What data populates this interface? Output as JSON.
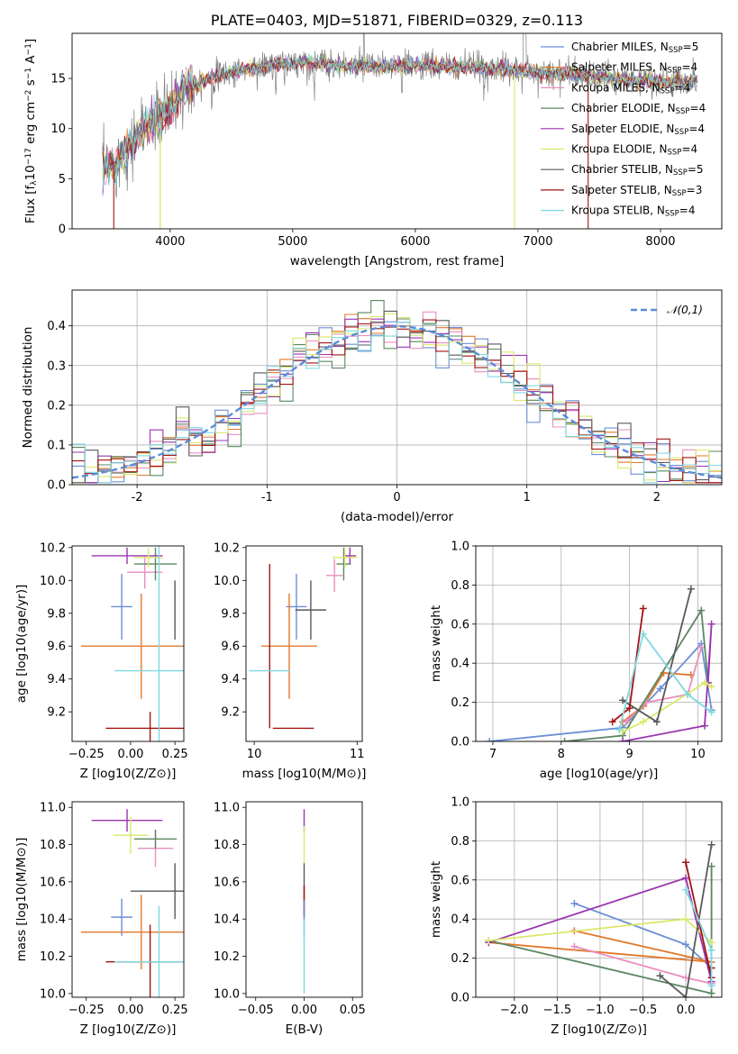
{
  "colors": {
    "Chabrier MILES": "#6a8fd6",
    "Salpeter MILES": "#e3792b",
    "Kroupa MILES": "#e98fbf",
    "Chabrier ELODIE": "#5b8761",
    "Salpeter ELODIE": "#9a35b0",
    "Kroupa ELODIE": "#dbe86a",
    "Chabrier STELIB": "#5a5a5a",
    "Salpeter STELIB": "#a31313",
    "Kroupa STELIB": "#7fd8e0"
  },
  "chart_data": [
    {
      "id": "spectrum",
      "type": "line",
      "title": "PLATE=0403, MJD=51871, FIBERID=0329, z=0.113",
      "xlabel": "wavelength [Angstrom, rest frame]",
      "ylabel": "Flux [f$_\\lambda$10$^{-17}$ erg cm$^{-2}$ s$^{-1}$ A$^{-1}$]",
      "ylabel_parts": [
        "Flux [f",
        "λ",
        "10",
        "−17",
        " erg cm",
        "−2",
        " s",
        "−1",
        " A",
        "−1",
        "]"
      ],
      "xlim": [
        3200,
        8500
      ],
      "ylim": [
        0,
        19.5
      ],
      "xticks": [
        4000,
        5000,
        6000,
        7000,
        8000
      ],
      "yticks": [
        0,
        5,
        10,
        15
      ],
      "legend_position": "upper right",
      "legend": [
        "Chabrier MILES, N$_{SSP}$=5",
        "Salpeter MILES, N$_{SSP}$=4",
        "Kroupa MILES, N$_{SSP}$=4",
        "Chabrier ELODIE, N$_{SSP}$=4",
        "Salpeter ELODIE, N$_{SSP}$=4",
        "Kroupa ELODIE, N$_{SSP}$=4",
        "Chabrier STELIB, N$_{SSP}$=5",
        "Salpeter STELIB, N$_{SSP}$=3",
        "Kroupa STELIB, N$_{SSP}$=4"
      ],
      "legend_parts": [
        [
          "Chabrier MILES, N",
          "SSP",
          "=5"
        ],
        [
          "Salpeter MILES, N",
          "SSP",
          "=4"
        ],
        [
          "Kroupa MILES, N",
          "SSP",
          "=4"
        ],
        [
          "Chabrier ELODIE, N",
          "SSP",
          "=4"
        ],
        [
          "Salpeter ELODIE, N",
          "SSP",
          "=4"
        ],
        [
          "Kroupa ELODIE, N",
          "SSP",
          "=4"
        ],
        [
          "Chabrier STELIB, N",
          "SSP",
          "=5"
        ],
        [
          "Salpeter STELIB, N",
          "SSP",
          "=3"
        ],
        [
          "Kroupa STELIB, N",
          "SSP",
          "=4"
        ]
      ],
      "data_color": "#808080",
      "continuum": [
        [
          3450,
          6.0
        ],
        [
          3550,
          6.4
        ],
        [
          3700,
          8.8
        ],
        [
          3800,
          10.3
        ],
        [
          3900,
          11.0
        ],
        [
          3960,
          11.6
        ],
        [
          4050,
          12.6
        ],
        [
          4100,
          14.2
        ],
        [
          4300,
          14.9
        ],
        [
          4500,
          15.6
        ],
        [
          4700,
          16.1
        ],
        [
          4900,
          16.4
        ],
        [
          5100,
          16.6
        ],
        [
          5300,
          16.4
        ],
        [
          5500,
          16.2
        ],
        [
          5800,
          16.2
        ],
        [
          6000,
          16.3
        ],
        [
          6300,
          16.2
        ],
        [
          6600,
          16.1
        ],
        [
          7000,
          15.6
        ],
        [
          7300,
          15.4
        ],
        [
          7600,
          15.0
        ],
        [
          8000,
          14.7
        ],
        [
          8300,
          14.7
        ]
      ],
      "dropouts": [
        [
          3540,
          "Salpeter STELIB"
        ],
        [
          3920,
          "Salpeter MILES"
        ],
        [
          3920,
          "Kroupa ELODIE"
        ],
        [
          6810,
          "Kroupa ELODIE"
        ],
        [
          7410,
          "Salpeter STELIB"
        ]
      ]
    },
    {
      "id": "residuals",
      "type": "histogram",
      "xlabel": "(data-model)/error",
      "ylabel": "Normed distribution",
      "xlim": [
        -2.5,
        2.5
      ],
      "ylim": [
        0,
        0.49
      ],
      "xticks": [
        -2,
        -1,
        0,
        1,
        2
      ],
      "yticks": [
        0.0,
        0.1,
        0.2,
        0.3,
        0.4
      ],
      "grid": true,
      "legend_position": "upper right",
      "legend": [
        "$\\mathcal{N}(0,1)$"
      ],
      "legend_text": "𝒩(0,1)",
      "reference_curve": "normal density, mean 0, sigma 1",
      "bin_width": 0.1
    },
    {
      "id": "z-age",
      "type": "errorbar",
      "xlabel": "Z [log$_{10}$($Z/Z_\\odot$)]",
      "xlabel_text": "Z [log10(Z/Z⊙)]",
      "ylabel": "age  [log$_{10}$($age/yr$)]",
      "ylabel_text": "age  [log10(age/yr)]",
      "xlim": [
        -0.33,
        0.3
      ],
      "ylim": [
        9.02,
        10.21
      ],
      "xticks": [
        -0.25,
        0.0,
        0.25
      ],
      "xticklabels": [
        "−0.25",
        "0.00",
        "0.25"
      ],
      "yticks": [
        9.2,
        9.4,
        9.6,
        9.8,
        10.0,
        10.2
      ],
      "yticklabels": [
        "9.2",
        "9.4",
        "9.6",
        "9.8",
        "10.0",
        "10.2"
      ],
      "points": [
        {
          "model": "Chabrier MILES",
          "x": -0.05,
          "xerr": 0.06,
          "y": 9.84,
          "yerr": 0.2
        },
        {
          "model": "Salpeter MILES",
          "x": 0.06,
          "xerr": 0.34,
          "y": 9.6,
          "yerr": 0.32
        },
        {
          "model": "Kroupa MILES",
          "x": 0.08,
          "xerr": 0.1,
          "y": 10.05,
          "yerr": 0.1
        },
        {
          "model": "Chabrier ELODIE",
          "x": 0.14,
          "xerr": 0.12,
          "y": 10.1,
          "yerr": 0.1
        },
        {
          "model": "Salpeter ELODIE",
          "x": -0.02,
          "xerr": 0.2,
          "y": 10.15,
          "yerr": 0.05
        },
        {
          "model": "Kroupa ELODIE",
          "x": 0.1,
          "xerr": 0.08,
          "y": 10.14,
          "yerr": 0.06
        },
        {
          "model": "Chabrier STELIB",
          "x": 0.25,
          "xerr": 0.0,
          "y": 9.82,
          "yerr": 0.18
        },
        {
          "model": "Salpeter STELIB",
          "x": 0.11,
          "xerr": 0.25,
          "y": 9.1,
          "yerr": 0.1
        },
        {
          "model": "Kroupa STELIB",
          "x": 0.16,
          "xerr": 0.25,
          "y": 9.45,
          "yerr": 0.8
        }
      ]
    },
    {
      "id": "mass-age",
      "type": "errorbar",
      "xlabel": "mass [log$_{10}$($M/M_\\odot$)]",
      "xlabel_text": "mass [log10(M/M⊙)]",
      "ylabel": "",
      "xlim": [
        9.92,
        11.05
      ],
      "ylim": [
        9.02,
        10.21
      ],
      "xticks": [
        10,
        11
      ],
      "xticklabels": [
        "10",
        "11"
      ],
      "yticks": [
        9.2,
        9.4,
        9.6,
        9.8,
        10.0,
        10.2
      ],
      "yticklabels": [
        "9.2",
        "9.4",
        "9.6",
        "9.8",
        "10.0",
        "10.2"
      ],
      "points": [
        {
          "model": "Chabrier MILES",
          "x": 10.41,
          "xerr": 0.1,
          "y": 9.84,
          "yerr": 0.2
        },
        {
          "model": "Salpeter MILES",
          "x": 10.34,
          "xerr": 0.27,
          "y": 9.6,
          "yerr": 0.32
        },
        {
          "model": "Kroupa MILES",
          "x": 10.78,
          "xerr": 0.08,
          "y": 10.03,
          "yerr": 0.1
        },
        {
          "model": "Chabrier ELODIE",
          "x": 10.87,
          "xerr": 0.07,
          "y": 10.1,
          "yerr": 0.1
        },
        {
          "model": "Salpeter ELODIE",
          "x": 10.93,
          "xerr": 0.06,
          "y": 10.15,
          "yerr": 0.05
        },
        {
          "model": "Kroupa ELODIE",
          "x": 10.88,
          "xerr": 0.12,
          "y": 10.14,
          "yerr": 0.06
        },
        {
          "model": "Chabrier STELIB",
          "x": 10.55,
          "xerr": 0.15,
          "y": 9.82,
          "yerr": 0.18
        },
        {
          "model": "Salpeter STELIB",
          "x": 10.15,
          "xerr": 0.0,
          "y": 9.6,
          "yerr": 0.5
        },
        {
          "model": "Salpeter STELIB",
          "x": 10.38,
          "xerr": 0.2,
          "y": 9.1,
          "yerr": 0.0
        },
        {
          "model": "Kroupa STELIB",
          "x": 10.15,
          "xerr": 0.2,
          "y": 9.45,
          "yerr": 0.0
        }
      ]
    },
    {
      "id": "age-weight",
      "type": "line",
      "xlabel": "age  [log$_{10}$($age/yr$)]",
      "xlabel_text": "age  [log10(age/yr)]",
      "ylabel": "mass weight",
      "xlim": [
        6.75,
        10.35
      ],
      "ylim": [
        0,
        1.0
      ],
      "xticks": [
        7,
        8,
        9,
        10
      ],
      "xticklabels": [
        "7",
        "8",
        "9",
        "10"
      ],
      "yticks": [
        0.0,
        0.2,
        0.4,
        0.6,
        0.8,
        1.0
      ],
      "yticklabels": [
        "0.0",
        "0.2",
        "0.4",
        "0.6",
        "0.8",
        "1.0"
      ],
      "grid": true,
      "series": [
        {
          "model": "Chabrier MILES",
          "x": [
            6.95,
            8.9,
            9.45,
            10.05,
            10.2
          ],
          "y": [
            0.0,
            0.07,
            0.27,
            0.5,
            0.16
          ]
        },
        {
          "model": "Salpeter MILES",
          "x": [
            8.9,
            9.2,
            9.5,
            9.9
          ],
          "y": [
            0.1,
            0.18,
            0.35,
            0.34
          ]
        },
        {
          "model": "Kroupa MILES",
          "x": [
            8.95,
            9.25,
            9.85,
            10.05
          ],
          "y": [
            0.1,
            0.2,
            0.24,
            0.48
          ]
        },
        {
          "model": "Chabrier ELODIE",
          "x": [
            8.05,
            8.9,
            10.05,
            10.15
          ],
          "y": [
            0.0,
            0.03,
            0.67,
            0.3
          ]
        },
        {
          "model": "Salpeter ELODIE",
          "x": [
            8.9,
            10.1,
            10.2,
            10.15
          ],
          "y": [
            0.0,
            0.08,
            0.6,
            0.3
          ]
        },
        {
          "model": "Kroupa ELODIE",
          "x": [
            8.9,
            9.2,
            10.1,
            10.2
          ],
          "y": [
            0.05,
            0.1,
            0.3,
            0.28
          ]
        },
        {
          "model": "Chabrier STELIB",
          "x": [
            8.9,
            9.4,
            9.9
          ],
          "y": [
            0.21,
            0.1,
            0.78
          ]
        },
        {
          "model": "Salpeter STELIB",
          "x": [
            8.75,
            9.0,
            9.2
          ],
          "y": [
            0.1,
            0.17,
            0.68
          ]
        },
        {
          "model": "Kroupa STELIB",
          "x": [
            8.85,
            9.2,
            9.85,
            10.2
          ],
          "y": [
            0.06,
            0.55,
            0.24,
            0.15
          ]
        }
      ]
    },
    {
      "id": "z-mass",
      "type": "errorbar",
      "xlabel": "Z [log$_{10}$($Z/Z_\\odot$)]",
      "xlabel_text": "Z [log10(Z/Z⊙)]",
      "ylabel": "mass [log$_{10}$($M/M_\\odot$)]",
      "ylabel_text": "mass [log10(M/M⊙)]",
      "xlim": [
        -0.33,
        0.3
      ],
      "ylim": [
        9.98,
        11.03
      ],
      "xticks": [
        -0.25,
        0.0,
        0.25
      ],
      "xticklabels": [
        "−0.25",
        "0.00",
        "0.25"
      ],
      "yticks": [
        10.0,
        10.2,
        10.4,
        10.6,
        10.8,
        11.0
      ],
      "yticklabels": [
        "10.0",
        "10.2",
        "10.4",
        "10.6",
        "10.8",
        "11.0"
      ],
      "points": [
        {
          "model": "Chabrier MILES",
          "x": -0.05,
          "xerr": 0.06,
          "y": 10.41,
          "yerr": 0.1
        },
        {
          "model": "Salpeter MILES",
          "x": 0.06,
          "xerr": 0.34,
          "y": 10.33,
          "yerr": 0.2
        },
        {
          "model": "Kroupa MILES",
          "x": 0.14,
          "xerr": 0.1,
          "y": 10.78,
          "yerr": 0.1
        },
        {
          "model": "Chabrier ELODIE",
          "x": 0.14,
          "xerr": 0.12,
          "y": 10.83,
          "yerr": 0.05
        },
        {
          "model": "Salpeter ELODIE",
          "x": -0.02,
          "xerr": 0.2,
          "y": 10.93,
          "yerr": 0.06
        },
        {
          "model": "Kroupa ELODIE",
          "x": 0.0,
          "xerr": 0.1,
          "y": 10.85,
          "yerr": 0.1
        },
        {
          "model": "Chabrier STELIB",
          "x": 0.25,
          "xerr": 0.25,
          "y": 10.55,
          "yerr": 0.15
        },
        {
          "model": "Salpeter STELIB",
          "x": 0.11,
          "xerr": 0.25,
          "y": 10.17,
          "yerr": 0.2
        },
        {
          "model": "Kroupa STELIB",
          "x": 0.16,
          "xerr": 0.25,
          "y": 10.17,
          "yerr": 0.3
        }
      ]
    },
    {
      "id": "ebv-mass",
      "type": "errorbar",
      "xlabel": "E(B-V)",
      "ylabel": "",
      "xlim": [
        -0.06,
        0.06
      ],
      "ylim": [
        9.98,
        11.03
      ],
      "xticks": [
        -0.05,
        0.0,
        0.05
      ],
      "xticklabels": [
        "−0.05",
        "0.00",
        "0.05"
      ],
      "yticks": [
        10.0,
        10.2,
        10.4,
        10.6,
        10.8,
        11.0
      ],
      "yticklabels": [
        "10.0",
        "10.2",
        "10.4",
        "10.6",
        "10.8",
        "11.0"
      ],
      "points": [
        {
          "model": "Salpeter ELODIE",
          "x": 0.0,
          "xerr": 0.0,
          "y": 10.93,
          "yerr": 0.06
        },
        {
          "model": "Kroupa ELODIE",
          "x": 0.0,
          "xerr": 0.0,
          "y": 10.8,
          "yerr": 0.1
        },
        {
          "model": "Chabrier STELIB",
          "x": 0.0,
          "xerr": 0.0,
          "y": 10.55,
          "yerr": 0.15
        },
        {
          "model": "Salpeter STELIB",
          "x": 0.0,
          "xerr": 0.0,
          "y": 10.5,
          "yerr": 0.08
        },
        {
          "model": "Chabrier MILES",
          "x": 0.0,
          "xerr": 0.0,
          "y": 10.4,
          "yerr": 0.1
        },
        {
          "model": "Kroupa STELIB",
          "x": 0.0,
          "xerr": 0.0,
          "y": 10.2,
          "yerr": 0.2
        }
      ]
    },
    {
      "id": "z-weight",
      "type": "line",
      "xlabel": "Z [log$_{10}$($Z/Z_\\odot$)]",
      "xlabel_text": "Z [log10(Z/Z⊙)]",
      "ylabel": "mass weight",
      "xlim": [
        -2.45,
        0.42
      ],
      "ylim": [
        0,
        1.0
      ],
      "xticks": [
        -2.0,
        -1.5,
        -1.0,
        -0.5,
        0.0
      ],
      "xticklabels": [
        "−2.0",
        "−1.5",
        "−1.0",
        "−0.5",
        "0.0"
      ],
      "yticks": [
        0.0,
        0.2,
        0.4,
        0.6,
        0.8,
        1.0
      ],
      "yticklabels": [
        "0.0",
        "0.2",
        "0.4",
        "0.6",
        "0.8",
        "1.0"
      ],
      "grid": true,
      "series": [
        {
          "model": "Chabrier MILES",
          "x": [
            -1.3,
            0.0,
            0.3
          ],
          "y": [
            0.48,
            0.27,
            0.15
          ]
        },
        {
          "model": "Salpeter MILES",
          "x": [
            -1.3,
            0.3,
            -2.3
          ],
          "y": [
            0.34,
            0.18,
            0.28
          ]
        },
        {
          "model": "Kroupa MILES",
          "x": [
            -1.3,
            0.0,
            0.3
          ],
          "y": [
            0.26,
            0.1,
            0.07
          ]
        },
        {
          "model": "Chabrier ELODIE",
          "x": [
            -2.3,
            0.3,
            0.3
          ],
          "y": [
            0.29,
            0.02,
            0.67
          ]
        },
        {
          "model": "Salpeter ELODIE",
          "x": [
            -2.3,
            0.0,
            0.3
          ],
          "y": [
            0.28,
            0.61,
            0.08
          ]
        },
        {
          "model": "Kroupa ELODIE",
          "x": [
            -2.3,
            0.0,
            0.3
          ],
          "y": [
            0.29,
            0.4,
            0.28
          ]
        },
        {
          "model": "Chabrier STELIB",
          "x": [
            -0.3,
            0.0,
            0.3
          ],
          "y": [
            0.11,
            0.0,
            0.78
          ]
        },
        {
          "model": "Salpeter STELIB",
          "x": [
            0.0,
            0.3,
            0.3
          ],
          "y": [
            0.69,
            0.1,
            0.15
          ]
        },
        {
          "model": "Kroupa STELIB",
          "x": [
            0.0,
            0.3,
            0.3
          ],
          "y": [
            0.55,
            0.24,
            0.06
          ]
        }
      ]
    }
  ]
}
